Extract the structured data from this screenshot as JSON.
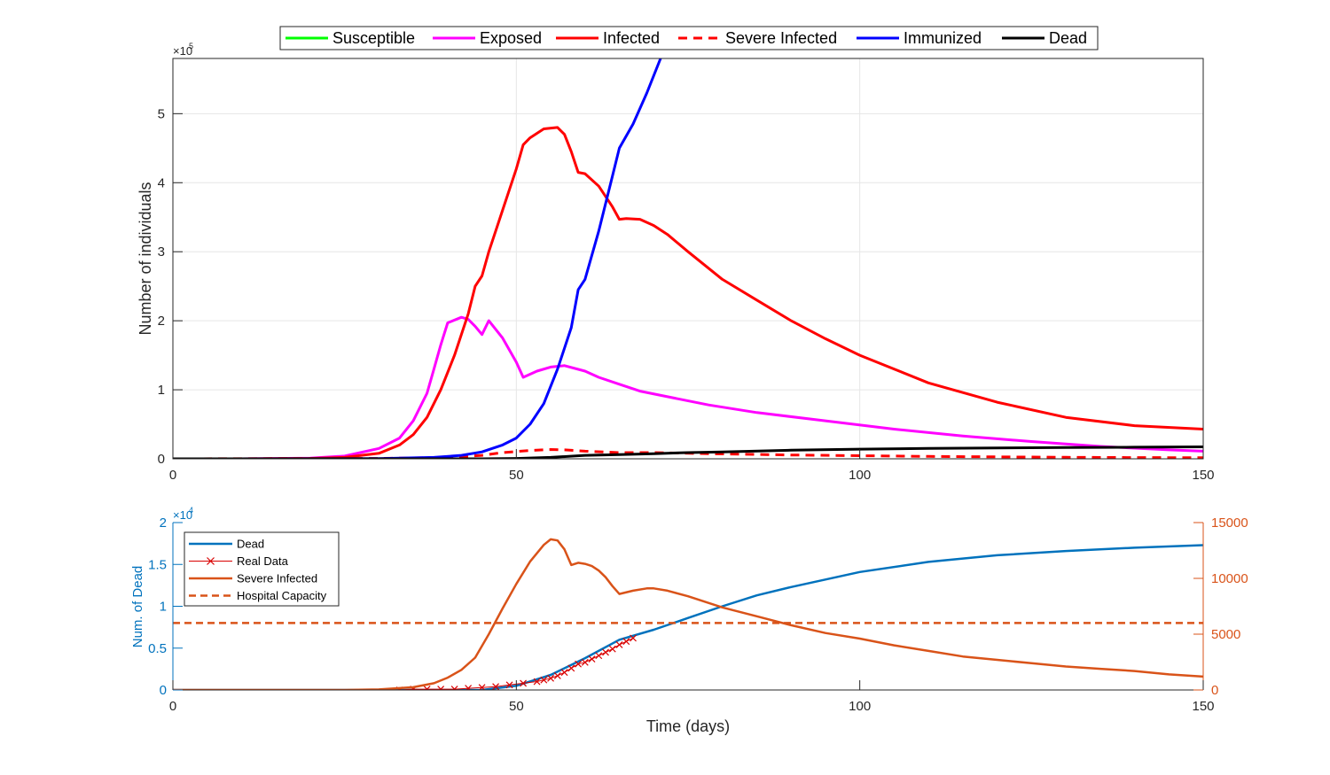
{
  "chart_data": [
    {
      "type": "line",
      "title": "",
      "xlabel": "",
      "ylabel": "Number of individuals",
      "xlim": [
        0,
        150
      ],
      "ylim": [
        0,
        5.8
      ],
      "y_exponent_label": "×10",
      "y_exponent": "5",
      "xticks": [
        "0",
        "50",
        "100",
        "150"
      ],
      "yticks": [
        "0",
        "1",
        "2",
        "3",
        "4",
        "5"
      ],
      "grid": true,
      "legend_position": "top, horizontal",
      "series": [
        {
          "name": "Susceptible",
          "color": "#00ff00",
          "style": "solid",
          "x": [
            0,
            150
          ],
          "y": [
            null,
            null
          ]
        },
        {
          "name": "Exposed",
          "color": "#ff00ff",
          "style": "solid",
          "x": [
            0,
            10,
            20,
            25,
            30,
            33,
            35,
            37,
            38,
            39,
            40,
            42,
            43,
            44,
            45,
            46,
            48,
            50,
            51,
            53,
            55,
            57,
            60,
            62,
            65,
            68,
            72,
            78,
            85,
            95,
            105,
            115,
            125,
            135,
            145,
            150
          ],
          "y": [
            0,
            0,
            0.01,
            0.04,
            0.15,
            0.3,
            0.55,
            0.95,
            1.3,
            1.65,
            1.97,
            2.05,
            2.02,
            1.92,
            1.8,
            2.0,
            1.75,
            1.4,
            1.18,
            1.27,
            1.33,
            1.35,
            1.27,
            1.18,
            1.08,
            0.98,
            0.9,
            0.78,
            0.67,
            0.55,
            0.43,
            0.33,
            0.25,
            0.18,
            0.13,
            0.11
          ]
        },
        {
          "name": "Infected",
          "color": "#ff0000",
          "style": "solid",
          "x": [
            0,
            10,
            20,
            25,
            30,
            33,
            35,
            37,
            39,
            41,
            43,
            44,
            45,
            46,
            48,
            50,
            51,
            52,
            54,
            56,
            57,
            58,
            59,
            60,
            62,
            64,
            65,
            66,
            68,
            70,
            72,
            75,
            80,
            85,
            90,
            95,
            100,
            110,
            120,
            130,
            140,
            150
          ],
          "y": [
            0,
            0,
            0.005,
            0.02,
            0.08,
            0.2,
            0.35,
            0.6,
            1.0,
            1.5,
            2.1,
            2.5,
            2.65,
            3.0,
            3.6,
            4.2,
            4.55,
            4.65,
            4.78,
            4.8,
            4.7,
            4.45,
            4.15,
            4.13,
            3.95,
            3.65,
            3.47,
            3.48,
            3.47,
            3.38,
            3.25,
            3.0,
            2.6,
            2.3,
            2.0,
            1.74,
            1.5,
            1.1,
            0.82,
            0.6,
            0.48,
            0.43
          ]
        },
        {
          "name": "Severe Infected",
          "color": "#ff0000",
          "style": "dashed",
          "x": [
            0,
            30,
            40,
            45,
            48,
            52,
            55,
            57,
            60,
            65,
            70,
            80,
            90,
            100,
            110,
            120,
            130,
            140,
            150
          ],
          "y": [
            0,
            0.005,
            0.02,
            0.05,
            0.09,
            0.12,
            0.135,
            0.13,
            0.11,
            0.09,
            0.09,
            0.07,
            0.055,
            0.045,
            0.035,
            0.028,
            0.022,
            0.018,
            0.016
          ]
        },
        {
          "name": "Immunized",
          "color": "#0000ff",
          "style": "solid",
          "x": [
            0,
            30,
            38,
            42,
            45,
            48,
            50,
            52,
            54,
            56,
            58,
            59,
            60,
            62,
            64,
            65,
            67,
            69,
            71
          ],
          "y": [
            0,
            0.002,
            0.02,
            0.05,
            0.1,
            0.2,
            0.3,
            0.5,
            0.8,
            1.3,
            1.9,
            2.45,
            2.6,
            3.3,
            4.1,
            4.5,
            4.85,
            5.3,
            5.8
          ]
        },
        {
          "name": "Dead",
          "color": "#000000",
          "style": "solid",
          "x": [
            0,
            45,
            50,
            55,
            60,
            65,
            70,
            75,
            80,
            90,
            100,
            110,
            120,
            130,
            140,
            150
          ],
          "y": [
            0,
            0,
            0.005,
            0.02,
            0.05,
            0.06,
            0.075,
            0.09,
            0.1,
            0.125,
            0.14,
            0.15,
            0.157,
            0.163,
            0.168,
            0.173
          ]
        }
      ]
    },
    {
      "type": "line",
      "title": "",
      "xlabel": "Time (days)",
      "ylabel": "Num. of Dead",
      "xlim": [
        0,
        150
      ],
      "ylim": [
        0,
        2
      ],
      "y_exponent_label": "×10",
      "y_exponent": "4",
      "xticks": [
        "0",
        "50",
        "100",
        "150"
      ],
      "yticks": [
        "0",
        "0.5",
        "1",
        "1.5",
        "2"
      ],
      "right_ylim": [
        0,
        15000
      ],
      "right_yticks": [
        "0",
        "5000",
        "10000",
        "15000"
      ],
      "grid": false,
      "legend_position": "top-left",
      "series": [
        {
          "name": "Dead",
          "axis": "left",
          "color": "#0072bd",
          "style": "solid",
          "x": [
            0,
            45,
            50,
            55,
            60,
            65,
            70,
            75,
            80,
            85,
            90,
            100,
            110,
            120,
            130,
            140,
            150
          ],
          "y": [
            0,
            0,
            0.05,
            0.18,
            0.38,
            0.6,
            0.72,
            0.86,
            1.0,
            1.13,
            1.23,
            1.41,
            1.53,
            1.61,
            1.66,
            1.7,
            1.73
          ]
        },
        {
          "name": "Real Data",
          "axis": "left",
          "color": "#d90000",
          "style": "line-x",
          "x": [
            33,
            35,
            37,
            39,
            41,
            43,
            45,
            47,
            49,
            51,
            53,
            54,
            55,
            56,
            57,
            58,
            59,
            60,
            61,
            62,
            63,
            64,
            65,
            66,
            67
          ],
          "y": [
            0.0,
            0.01,
            0.01,
            0.01,
            0.01,
            0.02,
            0.03,
            0.04,
            0.06,
            0.08,
            0.1,
            0.12,
            0.14,
            0.17,
            0.21,
            0.26,
            0.31,
            0.33,
            0.37,
            0.41,
            0.45,
            0.49,
            0.54,
            0.58,
            0.62
          ]
        },
        {
          "name": "Severe Infected",
          "axis": "right",
          "color": "#d95319",
          "style": "solid",
          "x": [
            0,
            25,
            30,
            35,
            38,
            40,
            42,
            44,
            46,
            48,
            50,
            52,
            54,
            55,
            56,
            57,
            58,
            59,
            60,
            61,
            62,
            63,
            64,
            65,
            67,
            69,
            70,
            72,
            75,
            80,
            85,
            90,
            95,
            100,
            105,
            110,
            115,
            120,
            125,
            130,
            135,
            140,
            145,
            150
          ],
          "y": [
            0,
            0,
            50,
            250,
            600,
            1100,
            1800,
            2900,
            5000,
            7300,
            9500,
            11500,
            13000,
            13500,
            13400,
            12600,
            11200,
            11400,
            11300,
            11100,
            10700,
            10100,
            9300,
            8600,
            8900,
            9100,
            9100,
            8900,
            8400,
            7400,
            6600,
            5800,
            5100,
            4600,
            4000,
            3500,
            3000,
            2700,
            2400,
            2100,
            1900,
            1700,
            1400,
            1200
          ]
        },
        {
          "name": "Hospital Capacity",
          "axis": "right",
          "color": "#d95319",
          "style": "dashed",
          "x": [
            0,
            150
          ],
          "y": [
            6000,
            6000
          ]
        }
      ]
    }
  ]
}
